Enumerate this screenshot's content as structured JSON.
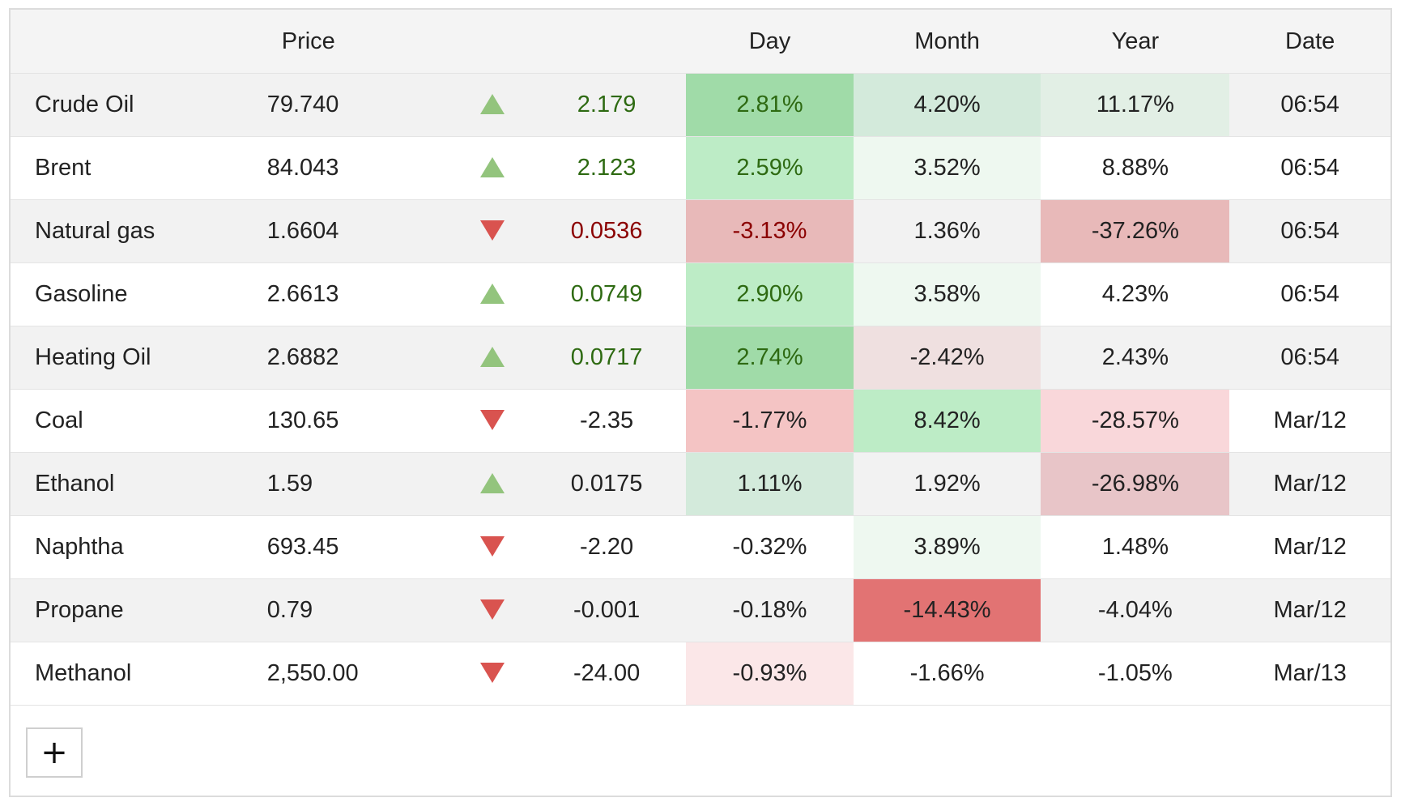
{
  "header": {
    "columns": [
      "",
      "Price",
      "",
      "",
      "Day",
      "Month",
      "Year",
      "Date"
    ]
  },
  "rows": [
    {
      "name": "Crude Oil",
      "price": "79.740",
      "direction": "up",
      "change": "2.179",
      "change_style": "up",
      "day": "2.81%",
      "month": "4.20%",
      "year": "11.17%",
      "date": "06:54",
      "day_bg": "#a0dba8",
      "month_bg": "#d3eadb",
      "year_bg": "#e2efe5"
    },
    {
      "name": "Brent",
      "price": "84.043",
      "direction": "up",
      "change": "2.123",
      "change_style": "up",
      "day": "2.59%",
      "month": "3.52%",
      "year": "8.88%",
      "date": "06:54",
      "day_bg": "#bdecc6",
      "month_bg": "#eef8f0",
      "year_bg": ""
    },
    {
      "name": "Natural gas",
      "price": "1.6604",
      "direction": "down",
      "change": "0.0536",
      "change_style": "down",
      "day": "-3.13%",
      "month": "1.36%",
      "year": "-37.26%",
      "date": "06:54",
      "day_bg": "#e8b9b9",
      "month_bg": "",
      "year_bg": "#e8b9b9"
    },
    {
      "name": "Gasoline",
      "price": "2.6613",
      "direction": "up",
      "change": "0.0749",
      "change_style": "up",
      "day": "2.90%",
      "month": "3.58%",
      "year": "4.23%",
      "date": "06:54",
      "day_bg": "#bdecc6",
      "month_bg": "#eef8f0",
      "year_bg": ""
    },
    {
      "name": "Heating Oil",
      "price": "2.6882",
      "direction": "up",
      "change": "0.0717",
      "change_style": "up",
      "day": "2.74%",
      "month": "-2.42%",
      "year": "2.43%",
      "date": "06:54",
      "day_bg": "#a0dba8",
      "month_bg": "#efe0e0",
      "year_bg": ""
    },
    {
      "name": "Coal",
      "price": "130.65",
      "direction": "down",
      "change": "-2.35",
      "change_style": "neutral",
      "day": "-1.77%",
      "month": "8.42%",
      "year": "-28.57%",
      "date": "Mar/12",
      "day_bg": "#f4c4c4",
      "month_bg": "#bdecc6",
      "year_bg": "#f9d7da"
    },
    {
      "name": "Ethanol",
      "price": "1.59",
      "direction": "up",
      "change": "0.0175",
      "change_style": "neutral",
      "day": "1.11%",
      "month": "1.92%",
      "year": "-26.98%",
      "date": "Mar/12",
      "day_bg": "#d3eadb",
      "month_bg": "",
      "year_bg": "#e8c5c8"
    },
    {
      "name": "Naphtha",
      "price": "693.45",
      "direction": "down",
      "change": "-2.20",
      "change_style": "neutral",
      "day": "-0.32%",
      "month": "3.89%",
      "year": "1.48%",
      "date": "Mar/12",
      "day_bg": "",
      "month_bg": "#eef8f0",
      "year_bg": ""
    },
    {
      "name": "Propane",
      "price": "0.79",
      "direction": "down",
      "change": "-0.001",
      "change_style": "neutral",
      "day": "-0.18%",
      "month": "-14.43%",
      "year": "-4.04%",
      "date": "Mar/12",
      "day_bg": "",
      "month_bg": "#e27373",
      "year_bg": ""
    },
    {
      "name": "Methanol",
      "price": "2,550.00",
      "direction": "down",
      "change": "-24.00",
      "change_style": "neutral",
      "day": "-0.93%",
      "month": "-1.66%",
      "year": "-1.05%",
      "date": "Mar/13",
      "day_bg": "#fbe7e8",
      "month_bg": "",
      "year_bg": ""
    }
  ],
  "add_button": {
    "label": "+"
  }
}
